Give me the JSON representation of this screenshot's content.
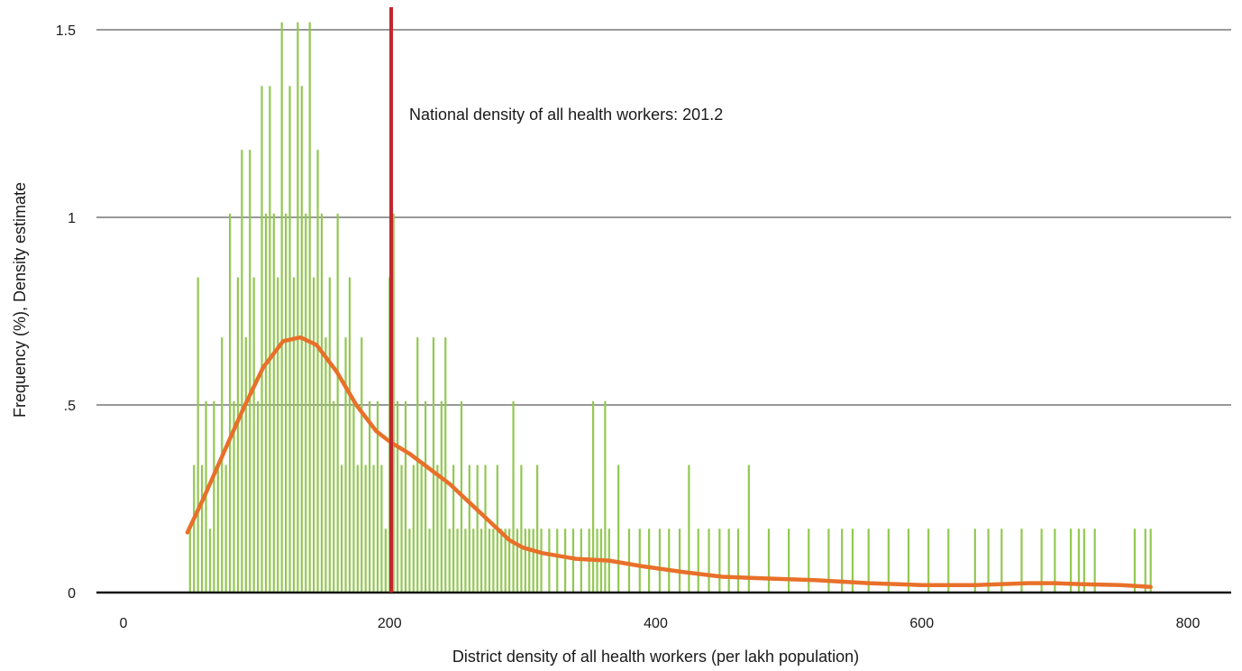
{
  "chart_data": {
    "type": "bar",
    "xlabel": "District density of all health workers (per lakh population)",
    "ylabel": "Frequency (%), Density estimate",
    "xlim": [
      0,
      830
    ],
    "ylim": [
      0,
      1.5
    ],
    "x_ticks": [
      {
        "value": 0,
        "label": "0"
      },
      {
        "value": 200,
        "label": "200"
      },
      {
        "value": 400,
        "label": "400"
      },
      {
        "value": 600,
        "label": "600"
      },
      {
        "value": 800,
        "label": "800"
      }
    ],
    "y_ticks": [
      {
        "value": 0,
        "label": "0"
      },
      {
        "value": 0.5,
        "label": ".5"
      },
      {
        "value": 1,
        "label": "1"
      },
      {
        "value": 1.5,
        "label": "1.5"
      }
    ],
    "grid": "horizontal",
    "colors": {
      "bars": "#92c850",
      "density_line": "#e8702a",
      "reference_line": "#c0272d",
      "grid": "#333333"
    },
    "series": [
      {
        "kind": "histogram",
        "x": [
          50,
          53,
          56,
          59,
          62,
          65,
          68,
          71,
          74,
          77,
          80,
          83,
          86,
          89,
          92,
          95,
          98,
          101,
          104,
          107,
          110,
          113,
          116,
          119,
          122,
          125,
          128,
          131,
          134,
          137,
          140,
          143,
          146,
          149,
          152,
          155,
          158,
          161,
          164,
          167,
          170,
          173,
          176,
          179,
          182,
          185,
          188,
          191,
          194,
          197,
          200,
          203,
          206,
          209,
          212,
          215,
          218,
          221,
          224,
          227,
          230,
          233,
          236,
          239,
          242,
          245,
          248,
          251,
          254,
          257,
          260,
          263,
          266,
          269,
          272,
          275,
          278,
          281,
          284,
          287,
          290,
          293,
          296,
          299,
          302,
          305,
          308,
          311,
          314,
          320,
          326,
          332,
          338,
          344,
          350,
          353,
          356,
          359,
          362,
          365,
          372,
          380,
          388,
          395,
          403,
          410,
          418,
          425,
          432,
          440,
          448,
          455,
          462,
          470,
          485,
          500,
          515,
          530,
          540,
          548,
          560,
          575,
          590,
          605,
          620,
          640,
          650,
          660,
          675,
          690,
          700,
          712,
          718,
          722,
          730,
          760,
          768,
          772
        ],
        "values": [
          0.17,
          0.34,
          0.84,
          0.34,
          0.51,
          0.17,
          0.51,
          0.34,
          0.68,
          0.34,
          1.01,
          0.51,
          0.84,
          1.18,
          0.68,
          1.18,
          0.84,
          0.51,
          1.35,
          1.01,
          1.35,
          1.01,
          0.84,
          1.52,
          1.01,
          1.35,
          0.84,
          1.52,
          1.35,
          1.01,
          1.52,
          0.84,
          1.18,
          1.01,
          0.68,
          0.84,
          0.51,
          1.01,
          0.34,
          0.68,
          0.84,
          0.51,
          0.34,
          0.68,
          0.34,
          0.51,
          0.34,
          0.51,
          0.34,
          0.17,
          0.84,
          1.01,
          0.51,
          0.34,
          0.51,
          0.17,
          0.34,
          0.68,
          0.34,
          0.51,
          0.17,
          0.68,
          0.34,
          0.51,
          0.68,
          0.17,
          0.34,
          0.17,
          0.51,
          0.17,
          0.34,
          0.17,
          0.34,
          0.17,
          0.34,
          0.17,
          0.17,
          0.34,
          0.17,
          0.17,
          0.17,
          0.51,
          0.17,
          0.34,
          0.17,
          0.17,
          0.17,
          0.34,
          0.17,
          0.17,
          0.17,
          0.17,
          0.17,
          0.17,
          0.17,
          0.51,
          0.17,
          0.17,
          0.51,
          0.17,
          0.34,
          0.17,
          0.17,
          0.17,
          0.17,
          0.17,
          0.17,
          0.34,
          0.17,
          0.17,
          0.17,
          0.17,
          0.17,
          0.34,
          0.17,
          0.17,
          0.17,
          0.17,
          0.17,
          0.17,
          0.17,
          0.17,
          0.17,
          0.17,
          0.17,
          0.17,
          0.17,
          0.17,
          0.17,
          0.17,
          0.17,
          0.17,
          0.17,
          0.17,
          0.17,
          0.17,
          0.17,
          0.17
        ]
      },
      {
        "kind": "density",
        "x": [
          48,
          60,
          75,
          90,
          105,
          120,
          133,
          145,
          160,
          175,
          190,
          201,
          215,
          230,
          245,
          260,
          275,
          290,
          300,
          315,
          340,
          365,
          390,
          420,
          450,
          480,
          520,
          560,
          600,
          640,
          680,
          700,
          720,
          750,
          772
        ],
        "values": [
          0.16,
          0.25,
          0.37,
          0.49,
          0.6,
          0.67,
          0.68,
          0.66,
          0.59,
          0.5,
          0.43,
          0.4,
          0.37,
          0.33,
          0.29,
          0.24,
          0.19,
          0.14,
          0.12,
          0.105,
          0.09,
          0.085,
          0.07,
          0.055,
          0.042,
          0.038,
          0.033,
          0.025,
          0.02,
          0.02,
          0.025,
          0.025,
          0.022,
          0.02,
          0.015
        ]
      }
    ],
    "reference_line": {
      "x": 201.2,
      "label": "National density of all health workers: 201.2"
    }
  }
}
